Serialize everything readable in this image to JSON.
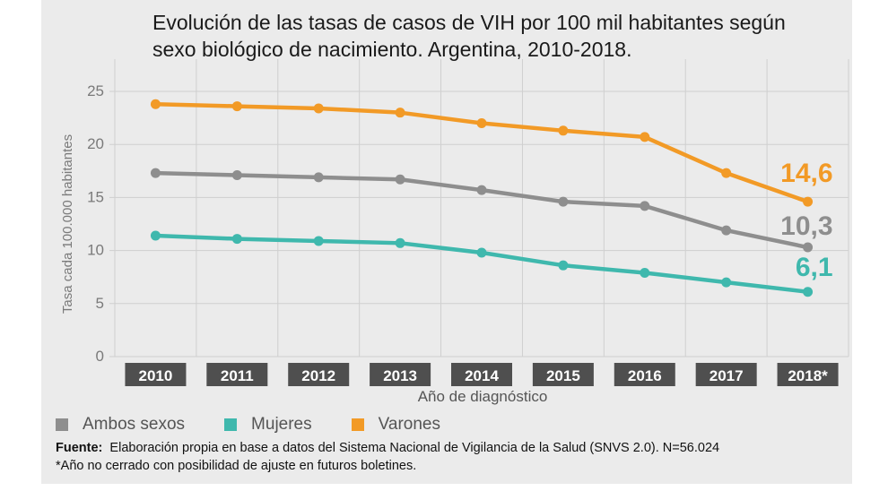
{
  "chart_data": {
    "type": "line",
    "title": "Evolución de las tasas de casos de VIH por 100 mil habitantes según sexo biológico de nacimiento. Argentina, 2010-2018.",
    "xlabel": "Año de diagnóstico",
    "ylabel": "Tasa cada 100.000 habitantes",
    "ylim": [
      0,
      25
    ],
    "yticks": [
      "0",
      "5",
      "10",
      "15",
      "20",
      "25"
    ],
    "categories": [
      "2010",
      "2011",
      "2012",
      "2013",
      "2014",
      "2015",
      "2016",
      "2017",
      "2018*"
    ],
    "grid": true,
    "series": [
      {
        "name": "Ambos sexos",
        "color": "#8e8e8e",
        "values": [
          17.3,
          17.1,
          16.9,
          16.7,
          15.7,
          14.6,
          14.2,
          11.9,
          10.3
        ],
        "end_label": "10,3"
      },
      {
        "name": "Mujeres",
        "color": "#3fb8ad",
        "values": [
          11.4,
          11.1,
          10.9,
          10.7,
          9.8,
          8.6,
          7.9,
          7.0,
          6.1
        ],
        "end_label": "6,1"
      },
      {
        "name": "Varones",
        "color": "#f29a26",
        "values": [
          23.8,
          23.6,
          23.4,
          23.0,
          22.0,
          21.3,
          20.7,
          17.3,
          14.6
        ],
        "end_label": "14,6"
      }
    ],
    "legend_position": "bottom-left"
  },
  "footer": {
    "source_label": "Fuente:",
    "source_text": "Elaboración propia en base a datos del Sistema Nacional de Vigilancia de la Salud (SNVS 2.0). N=56.024",
    "note": "*Año no cerrado con posibilidad de ajuste en futuros boletines."
  }
}
